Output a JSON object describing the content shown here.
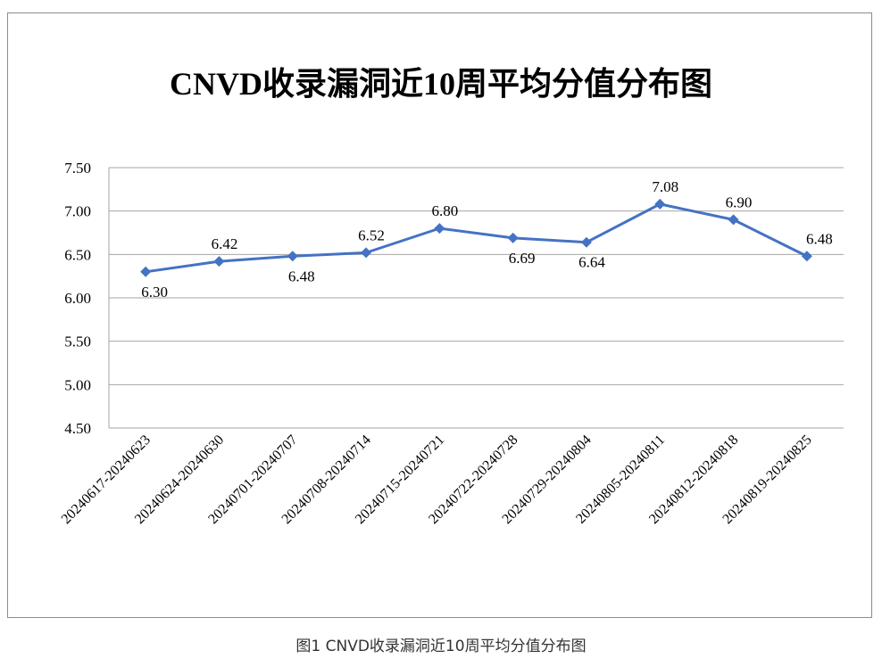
{
  "chart_data": {
    "type": "line",
    "title": "CNVD收录漏洞近10周平均分值分布图",
    "xlabel": "",
    "ylabel": "",
    "categories": [
      "20240617-20240623",
      "20240624-20240630",
      "20240701-20240707",
      "20240708-20240714",
      "20240715-20240721",
      "20240722-20240728",
      "20240729-20240804",
      "20240805-20240811",
      "20240812-20240818",
      "20240819-20240825"
    ],
    "series": [
      {
        "name": "平均分值",
        "values": [
          6.3,
          6.42,
          6.48,
          6.52,
          6.8,
          6.69,
          6.64,
          7.08,
          6.9,
          6.48
        ],
        "color": "#4472C4"
      }
    ],
    "data_labels": [
      "6.30",
      "6.42",
      "6.48",
      "6.52",
      "6.80",
      "6.69",
      "6.64",
      "7.08",
      "6.90",
      "6.48"
    ],
    "ylim": [
      4.5,
      7.5
    ],
    "yticks": [
      "4.50",
      "5.00",
      "5.50",
      "6.00",
      "6.50",
      "7.00",
      "7.50"
    ],
    "grid": true,
    "legend": "none"
  },
  "caption": "图1 CNVD收录漏洞近10周平均分值分布图"
}
